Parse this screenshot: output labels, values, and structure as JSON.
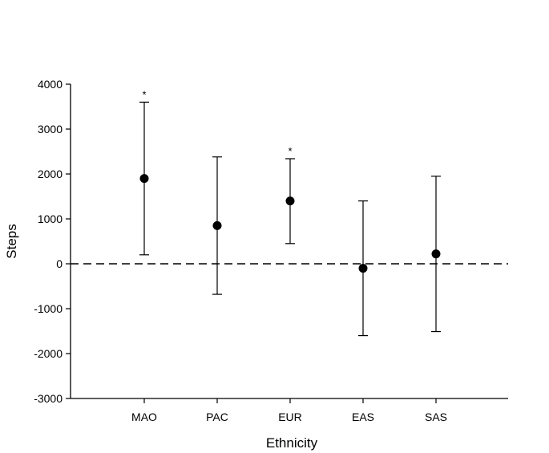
{
  "chart_data": {
    "type": "scatter",
    "subtype": "point-with-error-bars",
    "title": "",
    "xlabel": "Ethnicity",
    "ylabel": "Steps",
    "ylim": [
      -3000,
      4000
    ],
    "yticks": [
      4000,
      3000,
      2000,
      1000,
      0,
      -1000,
      -2000,
      -3000
    ],
    "ytick_labels": [
      "4000",
      "3000",
      "2000",
      "1000",
      "0",
      "-1000",
      "-2000",
      "-3000"
    ],
    "categories": [
      "MAO",
      "PAC",
      "EUR",
      "EAS",
      "SAS"
    ],
    "values": [
      1900,
      850,
      1400,
      -100,
      220
    ],
    "ci_upper": [
      3600,
      2380,
      2340,
      1400,
      1950
    ],
    "ci_lower": [
      200,
      -680,
      450,
      -1600,
      -1510
    ],
    "annotations": [
      "*",
      "",
      "*",
      "",
      ""
    ],
    "reference_line": {
      "y": 0,
      "style": "dashed"
    },
    "grid": false,
    "legend": null
  }
}
